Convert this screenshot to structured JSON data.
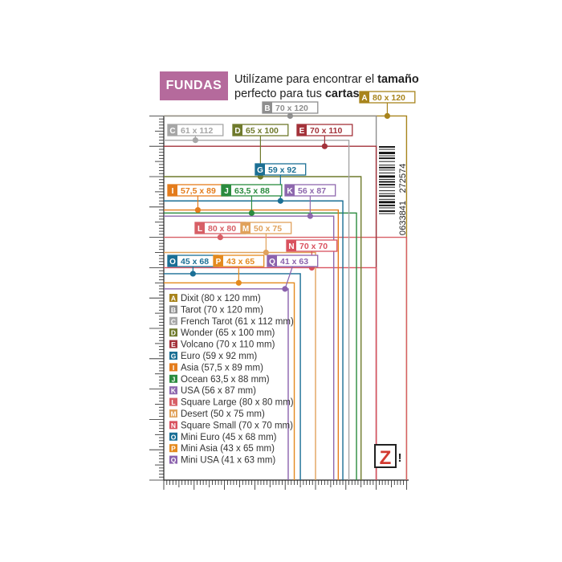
{
  "header": {
    "badge": "FUNDAS",
    "line1_plain": "Utilízame para encontrar el ",
    "line1_bold": "tamaño",
    "line2_plain": "perfecto para tus ",
    "line2_bold": "cartas",
    "line2_end": "."
  },
  "barcode": {
    "digits_top": "272574",
    "digits_mid": "633841",
    "digits_bottom": "0"
  },
  "logo": {
    "letter": "Z",
    "mark": "!"
  },
  "sizes": [
    {
      "code": "A",
      "label": "80 x 120",
      "legend": "Dixit (80 x 120 mm)",
      "color": "#a8841c"
    },
    {
      "code": "B",
      "label": "70 x 120",
      "legend": "Tarot (70 x 120 mm)",
      "color": "#8e8e8e"
    },
    {
      "code": "C",
      "label": "61 x 112",
      "legend": "French Tarot (61 x 112 mm)",
      "color": "#a6a6a6"
    },
    {
      "code": "D",
      "label": "65 x 100",
      "legend": "Wonder (65 x 100 mm)",
      "color": "#6f7a2c"
    },
    {
      "code": "E",
      "label": "70 x 110",
      "legend": "Volcano (70 x 110 mm)",
      "color": "#a3323a"
    },
    {
      "code": "G",
      "label": "59 x 92",
      "legend": "Euro (59 x 92 mm)",
      "color": "#1b6f94"
    },
    {
      "code": "I",
      "label": "57,5 x 89",
      "legend": "Asia (57,5 x 89 mm)",
      "color": "#e47c1c"
    },
    {
      "code": "J",
      "label": "63,5 x 88",
      "legend": "Ocean 63,5 x 88 mm)",
      "color": "#2a8b3e"
    },
    {
      "code": "K",
      "label": "56 x 87",
      "legend": "USA (56 x 87 mm)",
      "color": "#8e68ae"
    },
    {
      "code": "L",
      "label": "80 x 80",
      "legend": "Square Large (80 x 80 mm)",
      "color": "#d75f66"
    },
    {
      "code": "M",
      "label": "50 x 75",
      "legend": "Desert (50 x 75 mm)",
      "color": "#e0a25c"
    },
    {
      "code": "N",
      "label": "70 x 70",
      "legend": "Square Small (70 x 70 mm)",
      "color": "#d9525f"
    },
    {
      "code": "O",
      "label": "45 x 68",
      "legend": "Mini Euro (45 x 68 mm)",
      "color": "#1a6f96"
    },
    {
      "code": "P",
      "label": "43 x 65",
      "legend": "Mini Asia (43 x 65 mm)",
      "color": "#e48a1e"
    },
    {
      "code": "Q",
      "label": "41 x 63",
      "legend": "Mini USA (41 x 63 mm)",
      "color": "#8b62ad"
    }
  ]
}
